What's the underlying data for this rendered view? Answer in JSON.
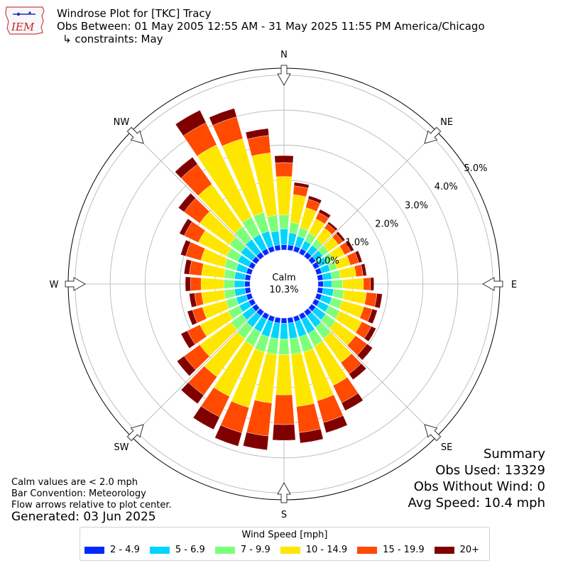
{
  "header": {
    "logo_text": "IEM",
    "title": "Windrose Plot for [TKC] Tracy",
    "subtitle": "Obs Between: 01 May 2005 12:55 AM - 31 May 2025 11:55 PM America/Chicago",
    "constraints": "↳ constraints: May"
  },
  "notes": {
    "calm_def": "Calm values are < 2.0 mph",
    "bar_convention": "Bar Convention: Meteorology",
    "flow_arrows": "Flow arrows relative to plot center.",
    "generated": "Generated: 03 Jun 2025"
  },
  "summary": {
    "title": "Summary",
    "obs_used": "Obs Used: 13329",
    "obs_without_wind": "Obs Without Wind: 0",
    "avg_speed": "Avg Speed: 10.4 mph"
  },
  "calm": {
    "label": "Calm",
    "value": "10.3%"
  },
  "legend": {
    "title": "Wind Speed [mph]",
    "items": [
      {
        "label": "2 - 4.9",
        "color": "#0028ff"
      },
      {
        "label": "5 - 6.9",
        "color": "#00d4ff"
      },
      {
        "label": "7 - 9.9",
        "color": "#7dff7a"
      },
      {
        "label": "10 - 14.9",
        "color": "#ffe600"
      },
      {
        "label": "15 - 19.9",
        "color": "#ff4a00"
      },
      {
        "label": "20+",
        "color": "#800000"
      }
    ]
  },
  "chart_data": {
    "type": "bar",
    "subtype": "windrose",
    "directions_deg": [
      0,
      10,
      20,
      30,
      40,
      50,
      60,
      70,
      80,
      90,
      100,
      110,
      120,
      130,
      140,
      150,
      160,
      170,
      180,
      190,
      200,
      210,
      220,
      230,
      240,
      250,
      260,
      270,
      280,
      290,
      300,
      310,
      320,
      330,
      340,
      350
    ],
    "compass_labels": [
      {
        "label": "N",
        "deg": 0
      },
      {
        "label": "NE",
        "deg": 45
      },
      {
        "label": "E",
        "deg": 90
      },
      {
        "label": "SE",
        "deg": 135
      },
      {
        "label": "S",
        "deg": 180
      },
      {
        "label": "SW",
        "deg": 225
      },
      {
        "label": "W",
        "deg": 270
      },
      {
        "label": "NW",
        "deg": 315
      }
    ],
    "radial_ticks": [
      "0.0%",
      "1.0%",
      "2.0%",
      "3.0%",
      "4.0%",
      "5.0%"
    ],
    "radial_range": [
      0,
      5.2
    ],
    "bin_labels": [
      "2 - 4.9",
      "5 - 6.9",
      "7 - 9.9",
      "10 - 14.9",
      "15 - 19.9",
      "20+"
    ],
    "cumulative_pct": [
      [
        0.15,
        0.6,
        1.0,
        2.1,
        2.5,
        2.7
      ],
      [
        0.15,
        0.5,
        0.8,
        1.6,
        1.85,
        1.95
      ],
      [
        0.15,
        0.45,
        0.7,
        1.3,
        1.55,
        1.65
      ],
      [
        0.15,
        0.4,
        0.65,
        1.1,
        1.3,
        1.4
      ],
      [
        0.15,
        0.4,
        0.6,
        1.0,
        1.15,
        1.22
      ],
      [
        0.15,
        0.4,
        0.6,
        0.95,
        1.1,
        1.18
      ],
      [
        0.15,
        0.4,
        0.6,
        0.95,
        1.15,
        1.25
      ],
      [
        0.15,
        0.4,
        0.6,
        1.0,
        1.25,
        1.35
      ],
      [
        0.15,
        0.4,
        0.65,
        1.1,
        1.3,
        1.4
      ],
      [
        0.15,
        0.4,
        0.7,
        1.3,
        1.5,
        1.6
      ],
      [
        0.15,
        0.45,
        0.75,
        1.4,
        1.7,
        1.85
      ],
      [
        0.15,
        0.45,
        0.75,
        1.4,
        1.65,
        1.8
      ],
      [
        0.15,
        0.45,
        0.8,
        1.5,
        1.8,
        1.95
      ],
      [
        0.15,
        0.5,
        0.85,
        1.55,
        1.95,
        2.15
      ],
      [
        0.15,
        0.55,
        0.95,
        1.8,
        2.2,
        2.4
      ],
      [
        0.15,
        0.6,
        1.0,
        2.25,
        2.8,
        3.05
      ],
      [
        0.15,
        0.6,
        1.05,
        2.5,
        3.15,
        3.45
      ],
      [
        0.15,
        0.6,
        1.05,
        2.55,
        3.3,
        3.6
      ],
      [
        0.15,
        0.6,
        1.05,
        2.2,
        3.05,
        3.5
      ],
      [
        0.15,
        0.6,
        1.05,
        2.45,
        3.4,
        3.8
      ],
      [
        0.15,
        0.6,
        1.05,
        2.7,
        3.45,
        3.85
      ],
      [
        0.15,
        0.55,
        1.0,
        2.6,
        3.25,
        3.65
      ],
      [
        0.15,
        0.55,
        0.95,
        2.3,
        2.95,
        3.25
      ],
      [
        0.15,
        0.5,
        0.9,
        2.0,
        2.55,
        2.8
      ],
      [
        0.15,
        0.45,
        0.8,
        1.7,
        2.1,
        2.3
      ],
      [
        0.15,
        0.45,
        0.75,
        1.45,
        1.75,
        1.9
      ],
      [
        0.15,
        0.45,
        0.75,
        1.4,
        1.6,
        1.75
      ],
      [
        0.15,
        0.45,
        0.75,
        1.4,
        1.7,
        1.85
      ],
      [
        0.15,
        0.45,
        0.75,
        1.4,
        1.75,
        1.9
      ],
      [
        0.15,
        0.45,
        0.8,
        1.5,
        1.95,
        2.1
      ],
      [
        0.15,
        0.5,
        0.85,
        1.75,
        2.2,
        2.35
      ],
      [
        0.15,
        0.55,
        0.95,
        2.0,
        2.55,
        2.75
      ],
      [
        0.15,
        0.6,
        1.05,
        2.55,
        3.25,
        3.5
      ],
      [
        0.15,
        0.6,
        1.15,
        3.45,
        4.15,
        4.55
      ],
      [
        0.15,
        0.6,
        1.15,
        3.35,
        4.0,
        4.25
      ],
      [
        0.15,
        0.55,
        1.0,
        2.8,
        3.3,
        3.5
      ]
    ],
    "grid": true
  }
}
